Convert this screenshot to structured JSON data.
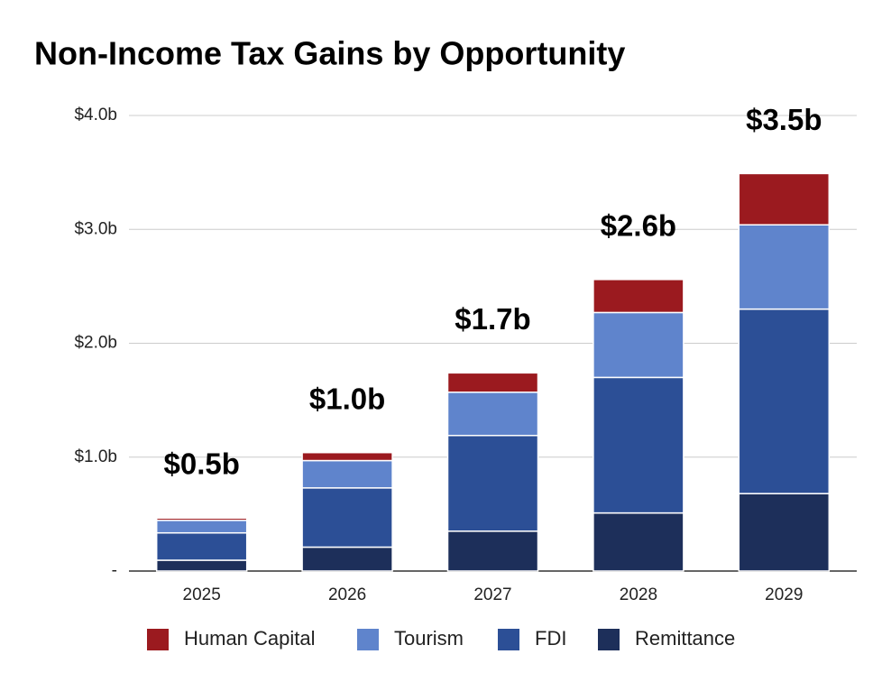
{
  "chart_data": {
    "type": "stacked-bar",
    "title": "Non-Income Tax Gains by Opportunity",
    "categories": [
      "2025",
      "2026",
      "2027",
      "2028",
      "2029"
    ],
    "series": [
      {
        "name": "Human Capital",
        "color": "#9b1a1f",
        "values": [
          0.02,
          0.07,
          0.17,
          0.29,
          0.45
        ]
      },
      {
        "name": "Tourism",
        "color": "#5f84cc",
        "values": [
          0.11,
          0.24,
          0.38,
          0.57,
          0.74
        ]
      },
      {
        "name": "FDI",
        "color": "#2c4f96",
        "values": [
          0.24,
          0.52,
          0.84,
          1.19,
          1.62
        ]
      },
      {
        "name": "Remittance",
        "color": "#1d2f5a",
        "values": [
          0.095,
          0.21,
          0.35,
          0.51,
          0.68
        ]
      }
    ],
    "totals": {
      "values": [
        0.47,
        1.04,
        1.74,
        2.56,
        3.49
      ],
      "value_labels": [
        "$0.5b",
        "$1.0b",
        "$1.7b",
        "$2.6b",
        "$3.5b"
      ]
    },
    "ylim": [
      0,
      4
    ],
    "yticks": [
      {
        "value": 0,
        "label": "-"
      },
      {
        "value": 1,
        "label": "$1.0b"
      },
      {
        "value": 2,
        "label": "$2.0b"
      },
      {
        "value": 3,
        "label": "$3.0b"
      },
      {
        "value": 4,
        "label": "$4.0b"
      }
    ],
    "grid": true,
    "legend": "bottom"
  }
}
